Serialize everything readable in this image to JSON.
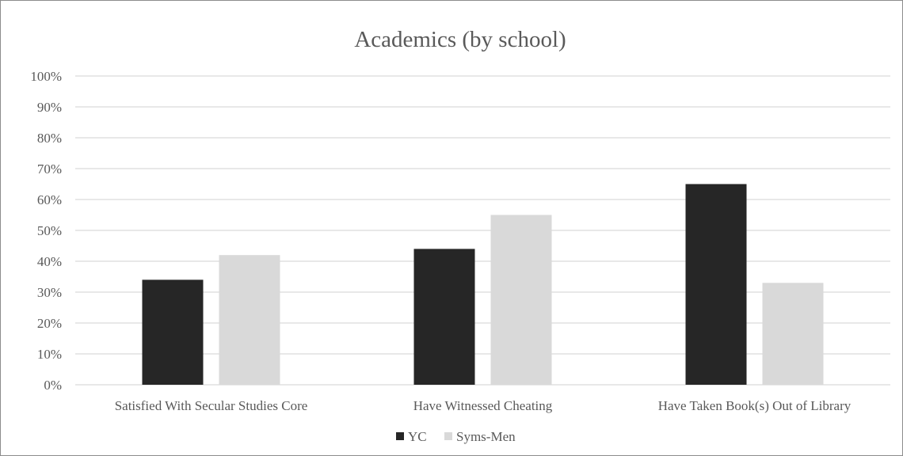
{
  "chart_data": {
    "type": "bar",
    "title": "Academics (by school)",
    "xlabel": "",
    "ylabel": "",
    "categories": [
      "Satisfied With Secular Studies Core",
      "Have Witnessed Cheating",
      "Have Taken Book(s) Out of Library"
    ],
    "series": [
      {
        "name": "YC",
        "color": "#262626",
        "values": [
          34,
          44,
          65
        ]
      },
      {
        "name": "Syms-Men",
        "color": "#d9d9d9",
        "values": [
          42,
          55,
          33
        ]
      }
    ],
    "ylim": [
      0,
      100
    ],
    "yticks": [
      0,
      10,
      20,
      30,
      40,
      50,
      60,
      70,
      80,
      90,
      100
    ],
    "ytick_labels": [
      "0%",
      "10%",
      "20%",
      "30%",
      "40%",
      "50%",
      "60%",
      "70%",
      "80%",
      "90%",
      "100%"
    ],
    "grid": true,
    "gridline_color": "#d9d9d9",
    "legend_position": "bottom"
  }
}
